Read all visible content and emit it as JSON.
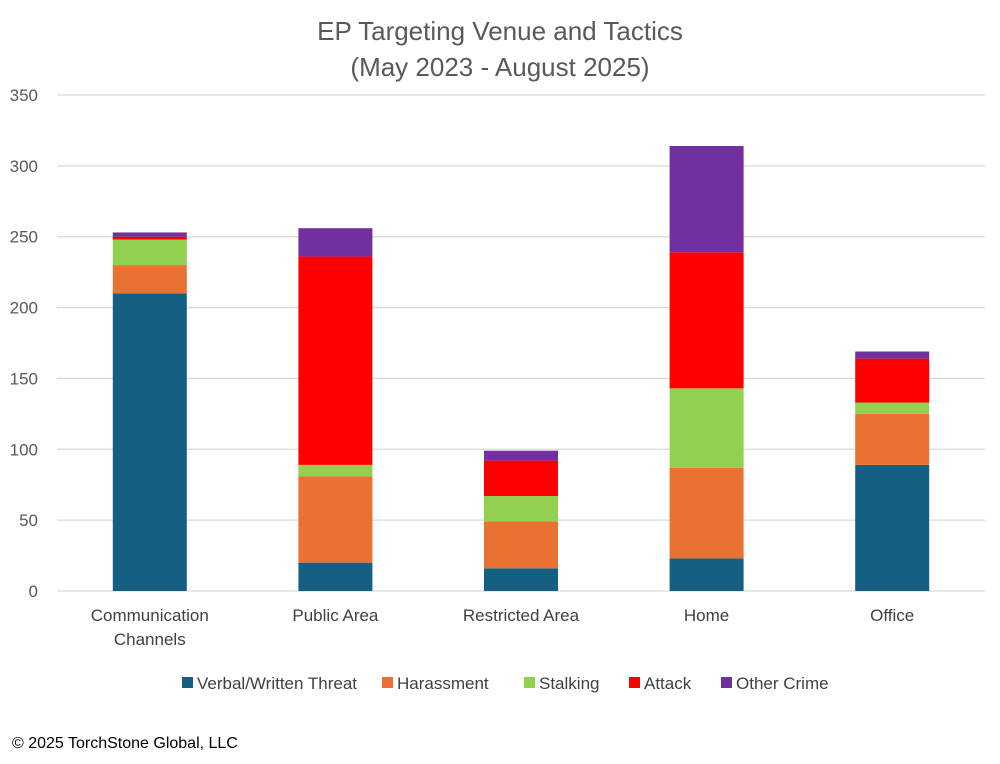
{
  "chart_data": {
    "type": "bar",
    "stacked": true,
    "title": [
      "EP Targeting Venue and Tactics",
      "(May 2023 - August 2025)"
    ],
    "xlabel": "",
    "ylabel": "",
    "ylim": [
      0,
      350
    ],
    "yticks": [
      0,
      50,
      100,
      150,
      200,
      250,
      300,
      350
    ],
    "grid": true,
    "legend_position": "bottom",
    "categories": [
      [
        "Communication",
        "Channels"
      ],
      [
        "Public Area"
      ],
      [
        "Restricted Area"
      ],
      [
        "Home"
      ],
      [
        "Office"
      ]
    ],
    "series": [
      {
        "name": "Verbal/Written Threat",
        "color": "#156082",
        "values": [
          210,
          20,
          16,
          23,
          89
        ]
      },
      {
        "name": "Harassment",
        "color": "#E97132",
        "values": [
          20,
          61,
          33,
          64,
          36
        ]
      },
      {
        "name": "Stalking",
        "color": "#92D050",
        "values": [
          18,
          8,
          18,
          56,
          8
        ]
      },
      {
        "name": "Attack",
        "color": "#FF0000",
        "values": [
          2,
          147,
          25,
          96,
          31
        ]
      },
      {
        "name": "Other Crime",
        "color": "#7030A0",
        "values": [
          3,
          20,
          7,
          75,
          5
        ]
      }
    ]
  },
  "footer": "© 2025 TorchStone Global, LLC"
}
